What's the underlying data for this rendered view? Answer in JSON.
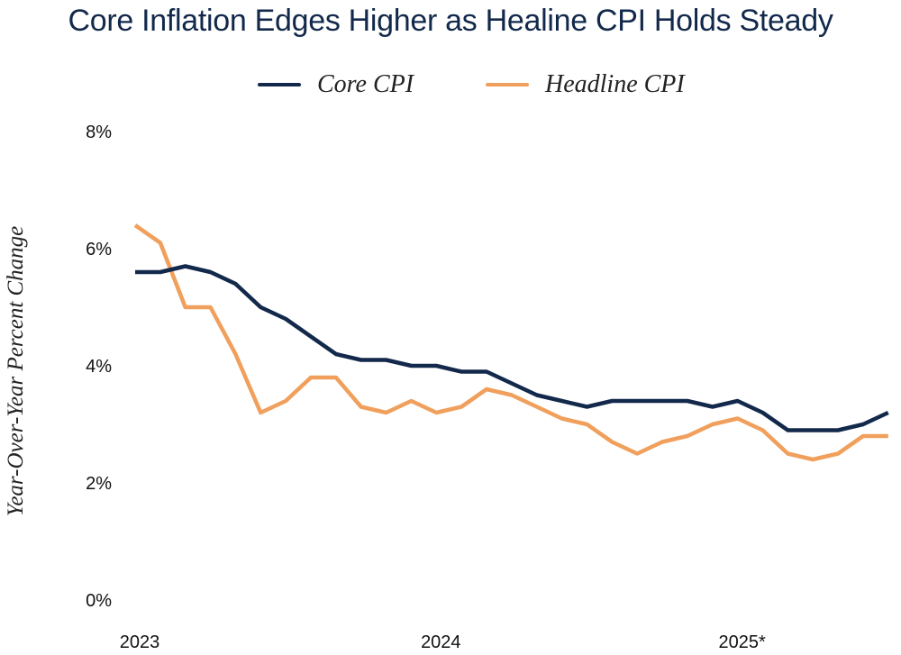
{
  "chart_data": {
    "type": "line",
    "title": "Core Inflation Edges Higher as Healine CPI Holds Steady",
    "xlabel": "",
    "ylabel": "Year-Over-Year Percent Change",
    "ylim": [
      0,
      8
    ],
    "yticks": [
      "0%",
      "2%",
      "4%",
      "6%",
      "8%"
    ],
    "xticks": [
      {
        "label": "2023",
        "index": 0
      },
      {
        "label": "2024",
        "index": 12
      },
      {
        "label": "2025*",
        "index": 24
      }
    ],
    "legend_position": "top-center",
    "grid": false,
    "series": [
      {
        "name": "Core CPI",
        "color": "#13294b",
        "values": [
          5.6,
          5.6,
          5.7,
          5.6,
          5.4,
          5.0,
          4.8,
          4.5,
          4.2,
          4.1,
          4.1,
          4.0,
          4.0,
          3.9,
          3.9,
          3.7,
          3.5,
          3.4,
          3.3,
          3.4,
          3.4,
          3.4,
          3.4,
          3.3,
          3.4,
          3.2,
          2.9,
          2.9,
          2.9,
          3.0,
          3.2
        ]
      },
      {
        "name": "Headline CPI",
        "color": "#f0a05c",
        "values": [
          6.4,
          6.1,
          5.0,
          5.0,
          4.2,
          3.2,
          3.4,
          3.8,
          3.8,
          3.3,
          3.2,
          3.4,
          3.2,
          3.3,
          3.6,
          3.5,
          3.3,
          3.1,
          3.0,
          2.7,
          2.5,
          2.7,
          2.8,
          3.0,
          3.1,
          2.9,
          2.5,
          2.4,
          2.5,
          2.8,
          2.8
        ]
      }
    ]
  }
}
